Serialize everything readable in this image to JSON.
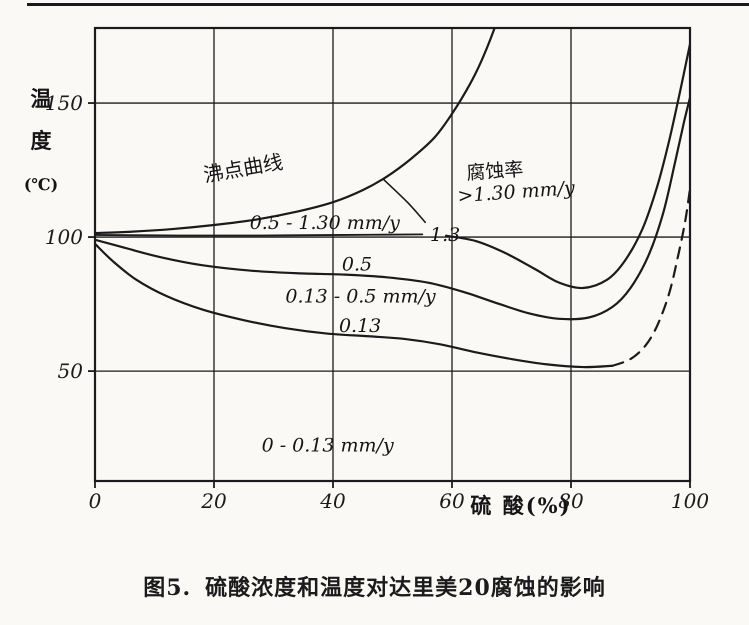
{
  "caption": {
    "figure_label": "图5.",
    "title": "硫酸浓度和温度对达里美20腐蚀的影响"
  },
  "chart_data": {
    "type": "line",
    "title": "图5. 硫酸浓度和温度对达里美20腐蚀的影响",
    "xlabel": "硫 酸(%)",
    "ylabel": "温度(℃)",
    "ylabel_stack": [
      "温",
      "度",
      "(℃)"
    ],
    "xlim": [
      0,
      100
    ],
    "ylim": [
      9,
      178
    ],
    "xticks": [
      0,
      20,
      40,
      60,
      80,
      100
    ],
    "yticks": [
      50,
      100,
      150
    ],
    "grid": true,
    "legend": "none",
    "ink": "#1b1b1b",
    "series": [
      {
        "name": "boiling-point-curve",
        "label": "沸点曲线",
        "points": [
          [
            0,
            101.5
          ],
          [
            6,
            102
          ],
          [
            13,
            103
          ],
          [
            20,
            104.5
          ],
          [
            27,
            106.5
          ],
          [
            34,
            109.5
          ],
          [
            40,
            113
          ],
          [
            45,
            117.5
          ],
          [
            49,
            122.5
          ],
          [
            53,
            129
          ],
          [
            57,
            137
          ],
          [
            60,
            146
          ],
          [
            63,
            157
          ],
          [
            65,
            166
          ],
          [
            67,
            177
          ],
          [
            68,
            184
          ]
        ]
      },
      {
        "name": "iso-1.30-left",
        "label": "1.3 mm/y boundary (left)",
        "width": 1.8,
        "points": [
          [
            0,
            100.8
          ],
          [
            14,
            100.6
          ],
          [
            28,
            100.6
          ],
          [
            42,
            100.8
          ],
          [
            55,
            101
          ]
        ]
      },
      {
        "name": "iso-1.30-leader",
        "label": "leader to 1.3 label",
        "width": 1.6,
        "points": [
          [
            48.5,
            121.5
          ],
          [
            52.5,
            113
          ],
          [
            55.5,
            105.5
          ]
        ]
      },
      {
        "name": "iso-1.30-right",
        "label": "1.3 mm/y boundary (right)",
        "points": [
          [
            59,
            100.5
          ],
          [
            64,
            98.5
          ],
          [
            69,
            94
          ],
          [
            74,
            88
          ],
          [
            78,
            83
          ],
          [
            82,
            81
          ],
          [
            86,
            84
          ],
          [
            89,
            91
          ],
          [
            92,
            103
          ],
          [
            94.5,
            119
          ],
          [
            96.5,
            136
          ],
          [
            98.3,
            154
          ],
          [
            100,
            172
          ]
        ]
      },
      {
        "name": "iso-0.5",
        "label": "0.5 mm/y boundary",
        "points": [
          [
            0,
            99
          ],
          [
            5,
            96
          ],
          [
            11,
            92.5
          ],
          [
            18,
            89.5
          ],
          [
            26,
            87.5
          ],
          [
            34,
            86.5
          ],
          [
            42,
            86
          ],
          [
            49,
            85
          ],
          [
            56,
            83
          ],
          [
            62,
            79.5
          ],
          [
            68,
            75
          ],
          [
            73,
            71.5
          ],
          [
            78,
            69.5
          ],
          [
            83,
            70
          ],
          [
            87,
            74
          ],
          [
            90,
            81
          ],
          [
            93,
            93
          ],
          [
            95.5,
            109
          ],
          [
            97.5,
            128
          ],
          [
            99,
            143
          ],
          [
            100,
            152
          ]
        ]
      },
      {
        "name": "iso-0.13",
        "label": "0.13 mm/y boundary",
        "points": [
          [
            0,
            97.5
          ],
          [
            3,
            91
          ],
          [
            7,
            84
          ],
          [
            12,
            78
          ],
          [
            18,
            73
          ],
          [
            25,
            69
          ],
          [
            32,
            66
          ],
          [
            39,
            64
          ],
          [
            46,
            63
          ],
          [
            52,
            62
          ],
          [
            58,
            60
          ],
          [
            64,
            57
          ],
          [
            70,
            54.5
          ],
          [
            76,
            52.5
          ],
          [
            82,
            51.5
          ],
          [
            87,
            52
          ]
        ]
      },
      {
        "name": "iso-0.13-dashed",
        "label": "0.13 mm/y boundary (extrapolated)",
        "dash": true,
        "points": [
          [
            87,
            52
          ],
          [
            90,
            54.5
          ],
          [
            92.5,
            59.5
          ],
          [
            94.5,
            67
          ],
          [
            96.5,
            79
          ],
          [
            98,
            93
          ],
          [
            99.2,
            106
          ],
          [
            100,
            118
          ]
        ]
      }
    ],
    "annotations": [
      {
        "text": "沸点曲线",
        "x": 18.5,
        "y": 120.5,
        "size": 20,
        "rotate": -10
      },
      {
        "text": "腐蚀率",
        "x": 62.5,
        "y": 121.5,
        "size": 19,
        "rotate": -4
      },
      {
        "text": ">1.30 mm/y",
        "x": 61,
        "y": 113,
        "size": 19,
        "italic": true,
        "rotate": -4
      },
      {
        "text": "0.5 - 1.30 mm/y",
        "x": 26,
        "y": 103,
        "size": 19,
        "italic": true
      },
      {
        "text": "1.3",
        "x": 56.3,
        "y": 98.5,
        "size": 19,
        "italic": true
      },
      {
        "text": "0.5",
        "x": 41.5,
        "y": 87.5,
        "size": 19,
        "italic": true
      },
      {
        "text": "0.13 - 0.5 mm/y",
        "x": 32,
        "y": 75.5,
        "size": 19,
        "italic": true
      },
      {
        "text": "0.13",
        "x": 41,
        "y": 64.5,
        "size": 19,
        "italic": true
      },
      {
        "text": "0 - 0.13 mm/y",
        "x": 28,
        "y": 20,
        "size": 19,
        "italic": true
      }
    ]
  }
}
